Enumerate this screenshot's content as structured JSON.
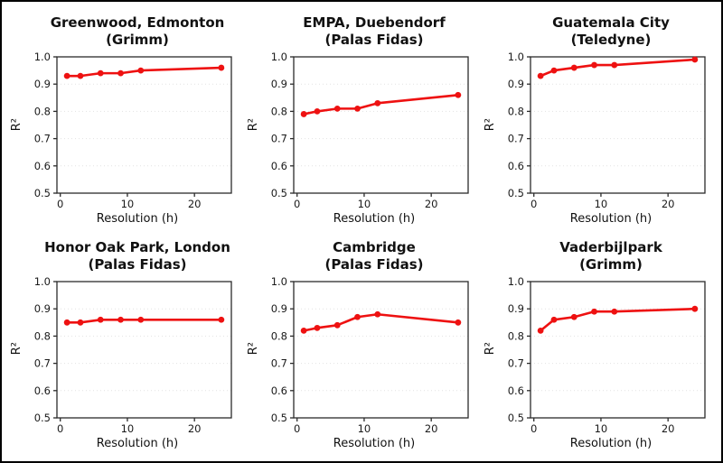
{
  "style": {
    "line_color": "#ee1111",
    "marker": "circle",
    "grid_color": "#e2e2e2",
    "axis_color": "#2b2b2b",
    "tick_text_color": "#1a1a1a",
    "background": "#ffffff",
    "border_color": "#000000"
  },
  "chart_data": [
    {
      "type": "line",
      "title": "Greenwood, Edmonton",
      "subtitle": "(Grimm)",
      "xlabel": "Resolution (h)",
      "ylabel": "R²",
      "x": [
        1,
        3,
        6,
        9,
        12,
        24
      ],
      "values": [
        0.93,
        0.93,
        0.94,
        0.94,
        0.95,
        0.96
      ],
      "xlim": [
        -0.5,
        25.5
      ],
      "ylim": [
        0.5,
        1.0
      ],
      "xticks": [
        0,
        10,
        20
      ],
      "yticks": [
        0.5,
        0.6,
        0.7,
        0.8,
        0.9,
        1.0
      ],
      "grid": "horizontal-dotted",
      "legend": "none"
    },
    {
      "type": "line",
      "title": "EMPA, Duebendorf",
      "subtitle": "(Palas Fidas)",
      "xlabel": "Resolution (h)",
      "ylabel": "R²",
      "x": [
        1,
        3,
        6,
        9,
        12,
        24
      ],
      "values": [
        0.79,
        0.8,
        0.81,
        0.81,
        0.83,
        0.86
      ],
      "xlim": [
        -0.5,
        25.5
      ],
      "ylim": [
        0.5,
        1.0
      ],
      "xticks": [
        0,
        10,
        20
      ],
      "yticks": [
        0.5,
        0.6,
        0.7,
        0.8,
        0.9,
        1.0
      ],
      "grid": "horizontal-dotted",
      "legend": "none"
    },
    {
      "type": "line",
      "title": "Guatemala City",
      "subtitle": "(Teledyne)",
      "xlabel": "Resolution (h)",
      "ylabel": "R²",
      "x": [
        1,
        3,
        6,
        9,
        12,
        24
      ],
      "values": [
        0.93,
        0.95,
        0.96,
        0.97,
        0.97,
        0.99
      ],
      "xlim": [
        -0.5,
        25.5
      ],
      "ylim": [
        0.5,
        1.0
      ],
      "xticks": [
        0,
        10,
        20
      ],
      "yticks": [
        0.5,
        0.6,
        0.7,
        0.8,
        0.9,
        1.0
      ],
      "grid": "horizontal-dotted",
      "legend": "none"
    },
    {
      "type": "line",
      "title": "Honor Oak Park, London",
      "subtitle": "(Palas Fidas)",
      "xlabel": "Resolution (h)",
      "ylabel": "R²",
      "x": [
        1,
        3,
        6,
        9,
        12,
        24
      ],
      "values": [
        0.85,
        0.85,
        0.86,
        0.86,
        0.86,
        0.86
      ],
      "xlim": [
        -0.5,
        25.5
      ],
      "ylim": [
        0.5,
        1.0
      ],
      "xticks": [
        0,
        10,
        20
      ],
      "yticks": [
        0.5,
        0.6,
        0.7,
        0.8,
        0.9,
        1.0
      ],
      "grid": "horizontal-dotted",
      "legend": "none"
    },
    {
      "type": "line",
      "title": "Cambridge",
      "subtitle": "(Palas Fidas)",
      "xlabel": "Resolution (h)",
      "ylabel": "R²",
      "x": [
        1,
        3,
        6,
        9,
        12,
        24
      ],
      "values": [
        0.82,
        0.83,
        0.84,
        0.87,
        0.88,
        0.85
      ],
      "xlim": [
        -0.5,
        25.5
      ],
      "ylim": [
        0.5,
        1.0
      ],
      "xticks": [
        0,
        10,
        20
      ],
      "yticks": [
        0.5,
        0.6,
        0.7,
        0.8,
        0.9,
        1.0
      ],
      "grid": "horizontal-dotted",
      "legend": "none"
    },
    {
      "type": "line",
      "title": "Vaderbijlpark",
      "subtitle": "(Grimm)",
      "xlabel": "Resolution (h)",
      "ylabel": "R²",
      "x": [
        1,
        3,
        6,
        9,
        12,
        24
      ],
      "values": [
        0.82,
        0.86,
        0.87,
        0.89,
        0.89,
        0.9
      ],
      "xlim": [
        -0.5,
        25.5
      ],
      "ylim": [
        0.5,
        1.0
      ],
      "xticks": [
        0,
        10,
        20
      ],
      "yticks": [
        0.5,
        0.6,
        0.7,
        0.8,
        0.9,
        1.0
      ],
      "grid": "horizontal-dotted",
      "legend": "none"
    }
  ]
}
